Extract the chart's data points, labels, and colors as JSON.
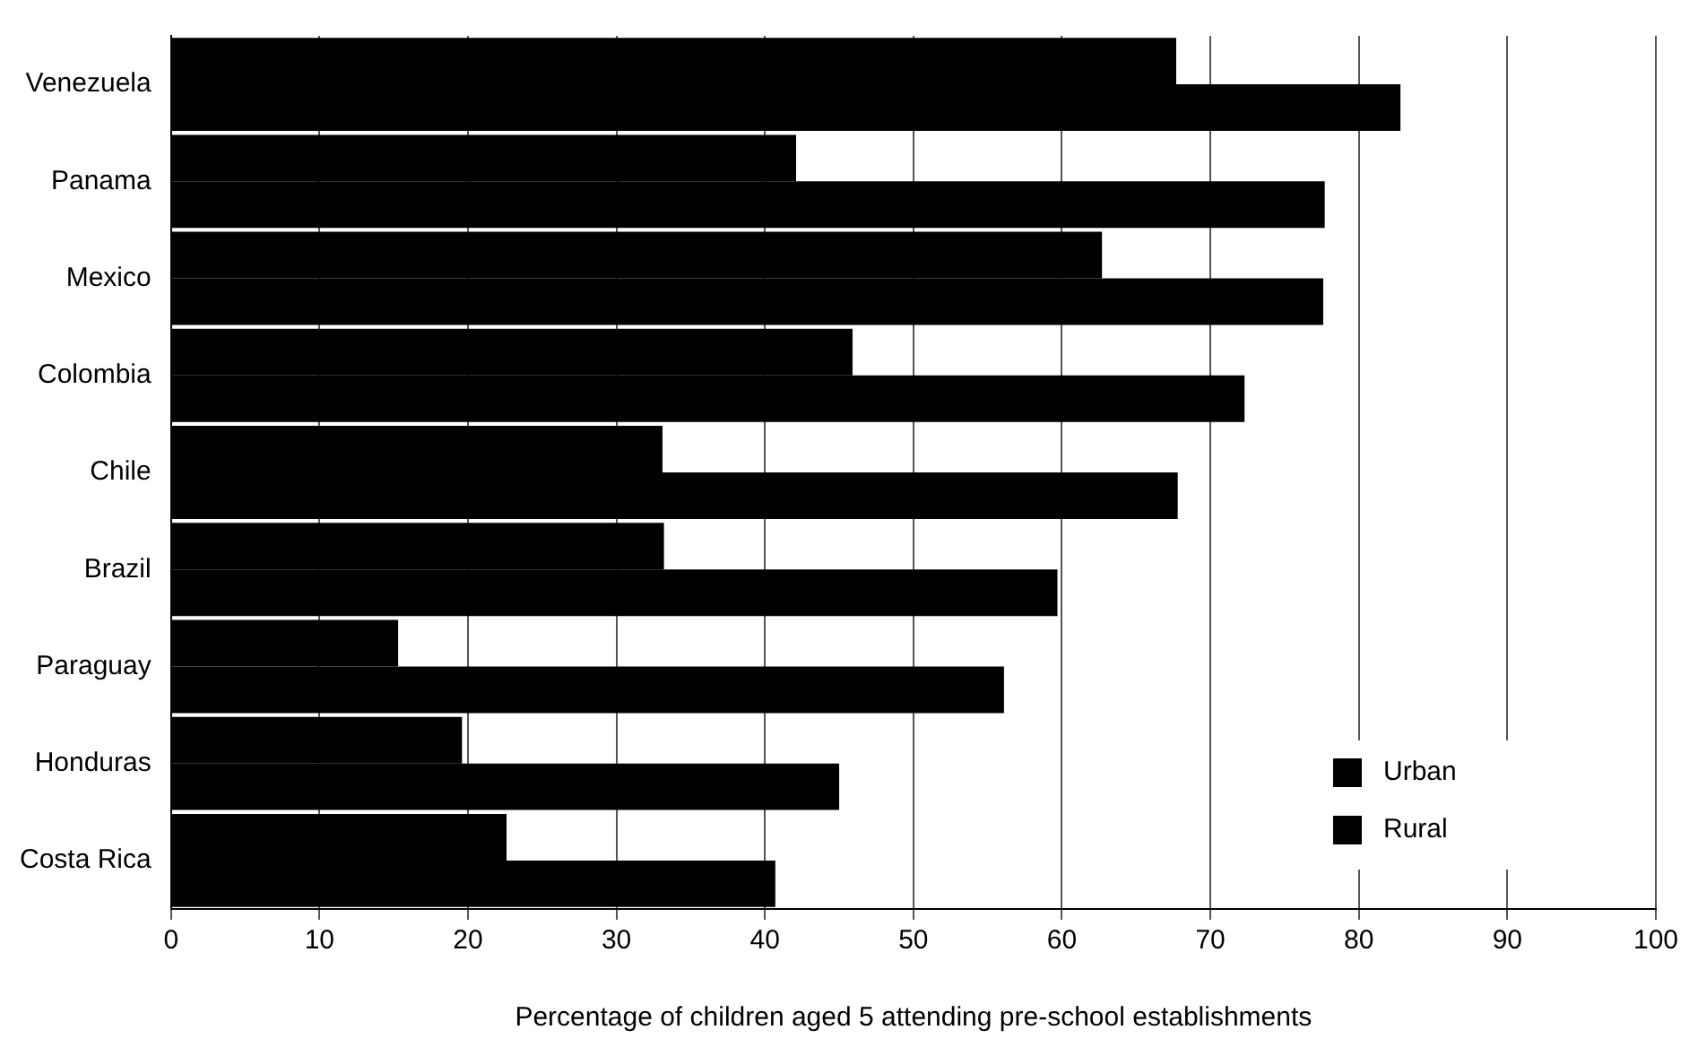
{
  "chart_data": {
    "type": "bar",
    "orientation": "horizontal",
    "xlabel": "Percentage of children aged 5 attending pre-school establishments",
    "categories": [
      "Venezuela",
      "Panama",
      "Mexico",
      "Colombia",
      "Chile",
      "Brazil",
      "Paraguay",
      "Honduras",
      "Costa Rica"
    ],
    "series": [
      {
        "name": "Rural",
        "color": "#000000",
        "values": [
          67.7,
          42.1,
          62.7,
          45.9,
          33.1,
          33.2,
          15.3,
          19.6,
          22.6
        ]
      },
      {
        "name": "Urban",
        "color": "#000000",
        "values": [
          82.8,
          77.7,
          77.6,
          72.3,
          67.8,
          59.7,
          56.1,
          45.0,
          40.7
        ]
      }
    ],
    "xlim": [
      0,
      100
    ],
    "xticks": [
      0,
      10,
      20,
      30,
      40,
      50,
      60,
      70,
      80,
      90,
      100
    ],
    "grid": "x",
    "legend": "bottom right"
  }
}
